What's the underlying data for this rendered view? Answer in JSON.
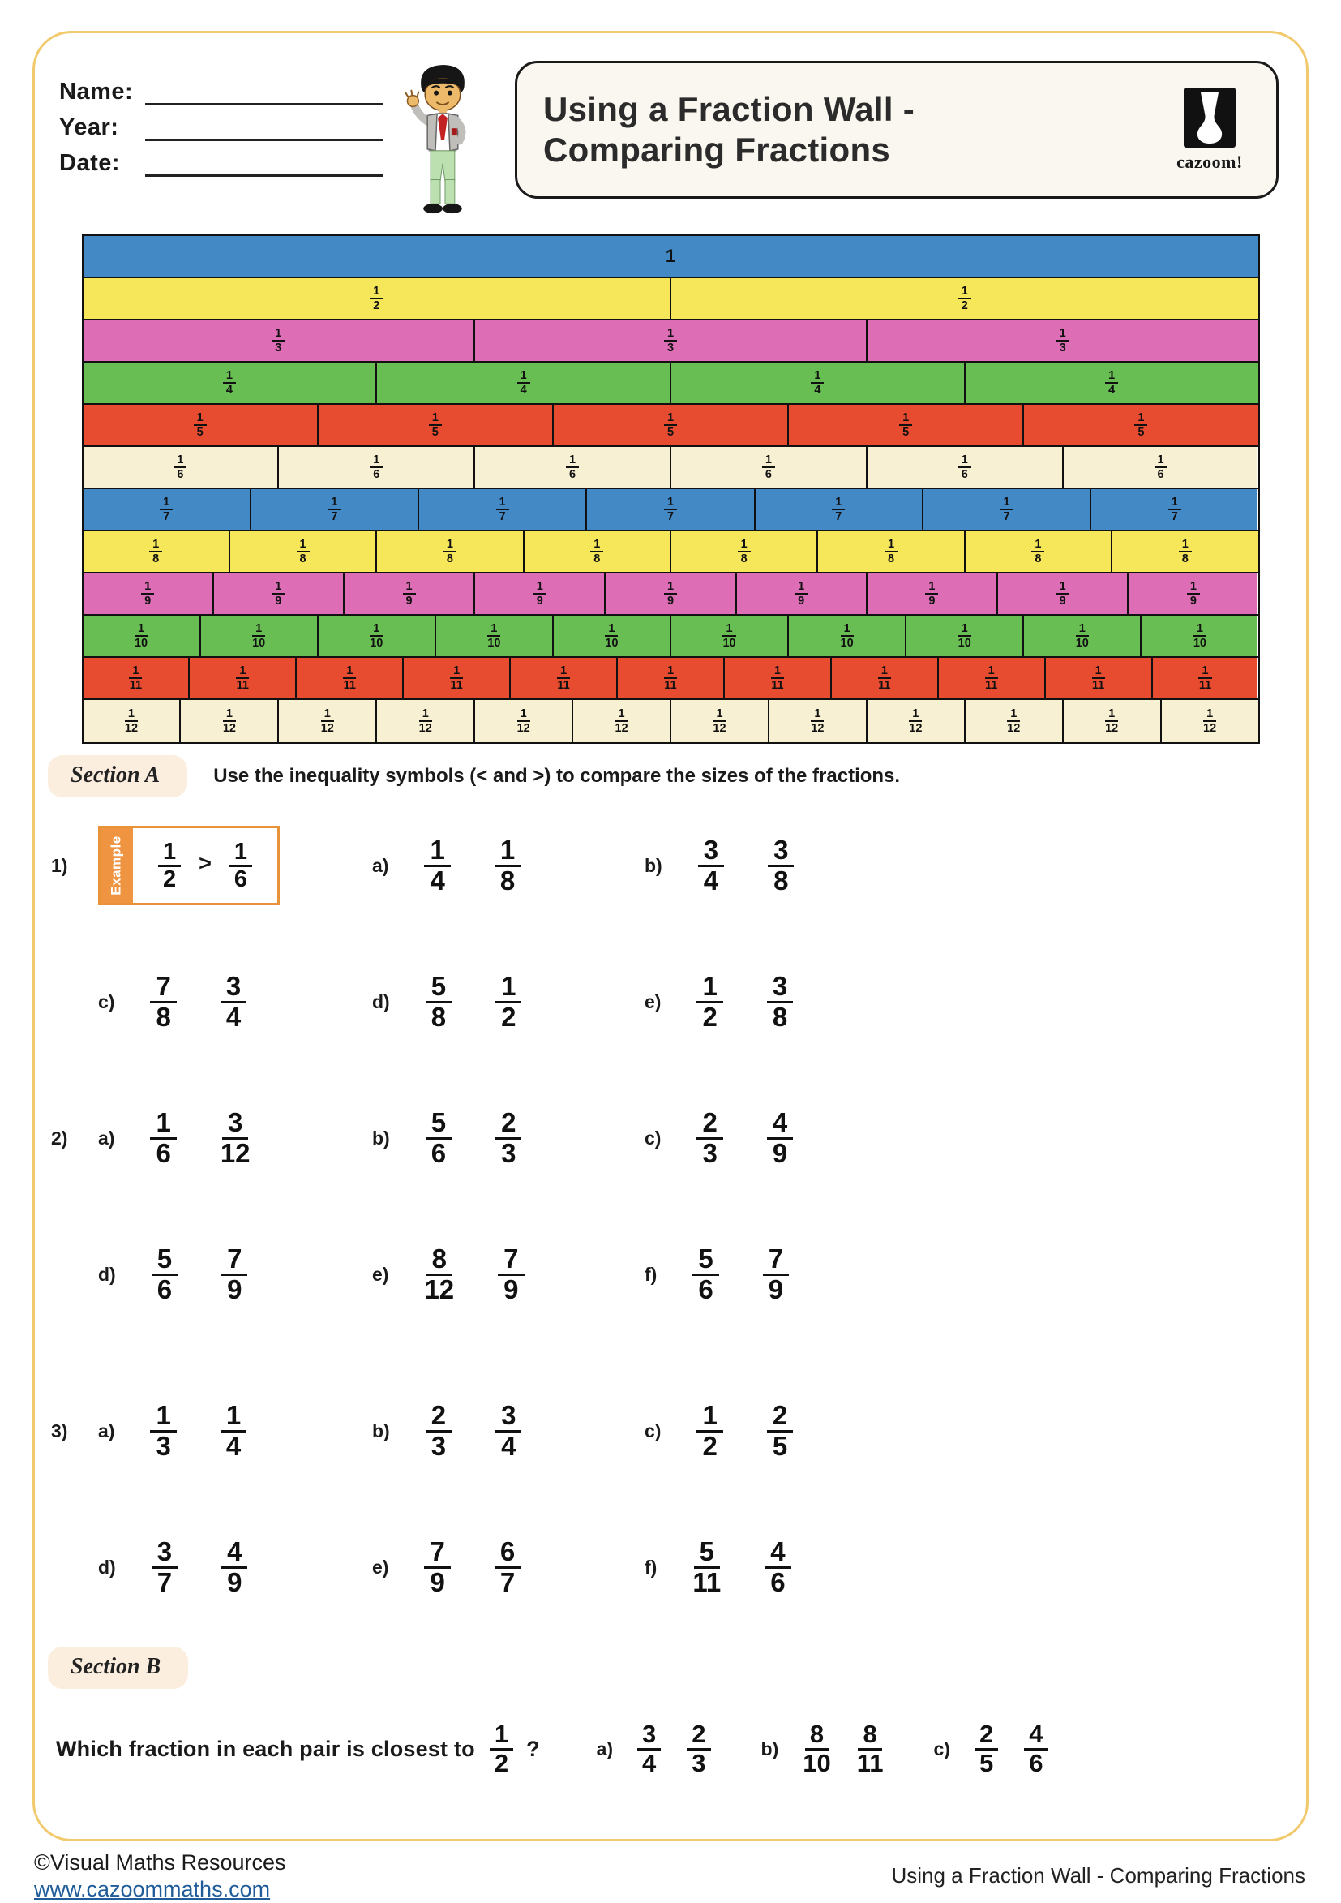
{
  "header": {
    "fields": [
      "Name:",
      "Year:",
      "Date:"
    ],
    "title_lines": [
      "Using a Fraction Wall -",
      "Comparing Fractions"
    ],
    "logo_label": "cazoom!"
  },
  "fraction_wall": {
    "rows": [
      {
        "count": 1,
        "numerator": "1",
        "denominator": "",
        "color": "#4289C6"
      },
      {
        "count": 2,
        "numerator": "1",
        "denominator": "2",
        "color": "#F5E65A"
      },
      {
        "count": 3,
        "numerator": "1",
        "denominator": "3",
        "color": "#DD6DB5"
      },
      {
        "count": 4,
        "numerator": "1",
        "denominator": "4",
        "color": "#68BE53"
      },
      {
        "count": 5,
        "numerator": "1",
        "denominator": "5",
        "color": "#E74C30"
      },
      {
        "count": 6,
        "numerator": "1",
        "denominator": "6",
        "color": "#F7F0D3"
      },
      {
        "count": 7,
        "numerator": "1",
        "denominator": "7",
        "color": "#4289C6"
      },
      {
        "count": 8,
        "numerator": "1",
        "denominator": "8",
        "color": "#F5E65A"
      },
      {
        "count": 9,
        "numerator": "1",
        "denominator": "9",
        "color": "#DD6DB5"
      },
      {
        "count": 10,
        "numerator": "1",
        "denominator": "10",
        "color": "#68BE53"
      },
      {
        "count": 11,
        "numerator": "1",
        "denominator": "11",
        "color": "#E74C30"
      },
      {
        "count": 12,
        "numerator": "1",
        "denominator": "12",
        "color": "#F7F0D3"
      }
    ]
  },
  "section_a": {
    "heading": "Section A",
    "instruction": "Use the inequality symbols (< and >) to compare the sizes of the fractions.",
    "example": {
      "tab": "Example",
      "left": [
        "1",
        "2"
      ],
      "symbol": ">",
      "right": [
        "1",
        "6"
      ]
    },
    "rows": [
      {
        "number": "1)",
        "has_example": true,
        "items": [
          {
            "label": "a)",
            "fractions": [
              [
                "1",
                "4"
              ],
              [
                "1",
                "8"
              ]
            ]
          },
          {
            "label": "b)",
            "fractions": [
              [
                "3",
                "4"
              ],
              [
                "3",
                "8"
              ]
            ]
          }
        ]
      },
      {
        "number": "",
        "items": [
          {
            "label": "c)",
            "fractions": [
              [
                "7",
                "8"
              ],
              [
                "3",
                "4"
              ]
            ]
          },
          {
            "label": "d)",
            "fractions": [
              [
                "5",
                "8"
              ],
              [
                "1",
                "2"
              ]
            ]
          },
          {
            "label": "e)",
            "fractions": [
              [
                "1",
                "2"
              ],
              [
                "3",
                "8"
              ]
            ]
          }
        ]
      },
      {
        "number": "2)",
        "items": [
          {
            "label": "a)",
            "fractions": [
              [
                "1",
                "6"
              ],
              [
                "3",
                "12"
              ]
            ]
          },
          {
            "label": "b)",
            "fractions": [
              [
                "5",
                "6"
              ],
              [
                "2",
                "3"
              ]
            ]
          },
          {
            "label": "c)",
            "fractions": [
              [
                "2",
                "3"
              ],
              [
                "4",
                "9"
              ]
            ]
          }
        ]
      },
      {
        "number": "",
        "items": [
          {
            "label": "d)",
            "fractions": [
              [
                "5",
                "6"
              ],
              [
                "7",
                "9"
              ]
            ]
          },
          {
            "label": "e)",
            "fractions": [
              [
                "8",
                "12"
              ],
              [
                "7",
                "9"
              ]
            ]
          },
          {
            "label": "f)",
            "fractions": [
              [
                "5",
                "6"
              ],
              [
                "7",
                "9"
              ]
            ]
          }
        ]
      },
      {
        "number": "3)",
        "items": [
          {
            "label": "a)",
            "fractions": [
              [
                "1",
                "3"
              ],
              [
                "1",
                "4"
              ]
            ]
          },
          {
            "label": "b)",
            "fractions": [
              [
                "2",
                "3"
              ],
              [
                "3",
                "4"
              ]
            ]
          },
          {
            "label": "c)",
            "fractions": [
              [
                "1",
                "2"
              ],
              [
                "2",
                "5"
              ]
            ]
          }
        ]
      },
      {
        "number": "",
        "items": [
          {
            "label": "d)",
            "fractions": [
              [
                "3",
                "7"
              ],
              [
                "4",
                "9"
              ]
            ]
          },
          {
            "label": "e)",
            "fractions": [
              [
                "7",
                "9"
              ],
              [
                "6",
                "7"
              ]
            ]
          },
          {
            "label": "f)",
            "fractions": [
              [
                "5",
                "11"
              ],
              [
                "4",
                "6"
              ]
            ]
          }
        ]
      }
    ]
  },
  "section_b": {
    "heading": "Section B",
    "question_prefix": "Which fraction in each pair is closest to",
    "target_fraction": [
      "1",
      "2"
    ],
    "question_suffix": "?",
    "items": [
      {
        "label": "a)",
        "fractions": [
          [
            "3",
            "4"
          ],
          [
            "2",
            "3"
          ]
        ]
      },
      {
        "label": "b)",
        "fractions": [
          [
            "8",
            "10"
          ],
          [
            "8",
            "11"
          ]
        ]
      },
      {
        "label": "c)",
        "fractions": [
          [
            "2",
            "5"
          ],
          [
            "4",
            "6"
          ]
        ]
      }
    ]
  },
  "footer": {
    "left_line1": "©Visual Maths Resources",
    "left_line2": "www.cazoommaths.com",
    "right": "Using a Fraction Wall - Comparing Fractions"
  }
}
